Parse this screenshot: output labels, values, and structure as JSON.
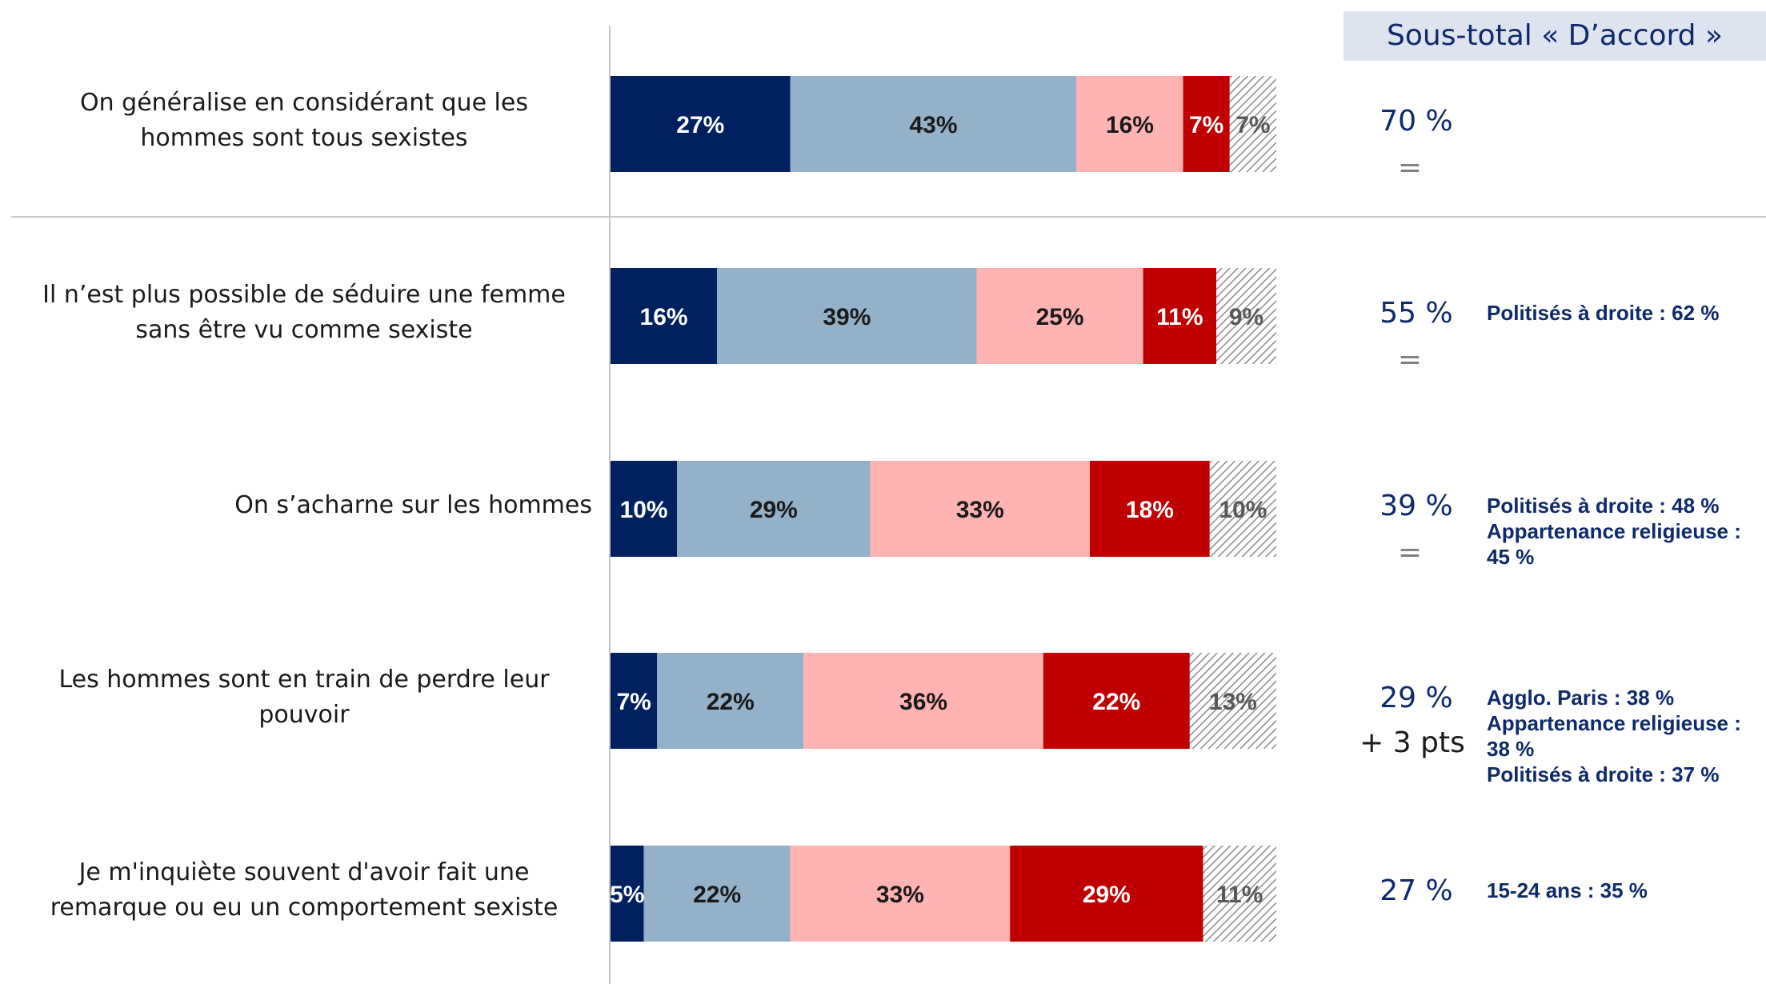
{
  "header": {
    "subtotal_title": "Sous-total « D’accord »"
  },
  "chart_data": {
    "type": "bar",
    "orientation": "horizontal",
    "stacked": true,
    "value_format": "{v}%",
    "categories": [
      "On généralise en considérant que les\nhommes sont tous sexistes",
      "Il n’est plus possible de séduire une femme\nsans être vu comme sexiste",
      "On s’acharne sur les hommes",
      "Les hommes sont en train de perdre leur\npouvoir",
      "Je m'inquiète souvent d'avoir fait une\nremarque ou eu un comportement sexiste"
    ],
    "series": [
      {
        "values": [
          27,
          16,
          10,
          7,
          5
        ],
        "color": "#002060",
        "label_color": "#ffffff"
      },
      {
        "values": [
          43,
          39,
          29,
          22,
          22
        ],
        "color": "#93b1c8",
        "label_color": "#1a1a1a"
      },
      {
        "values": [
          16,
          25,
          33,
          36,
          33
        ],
        "color": "#ffb3b3",
        "label_color": "#1a1a1a"
      },
      {
        "values": [
          7,
          11,
          18,
          22,
          29
        ],
        "color": "#c00000",
        "label_color": "#ffffff"
      },
      {
        "values": [
          7,
          9,
          10,
          13,
          11
        ],
        "color": "hatched",
        "label_color": "#595959"
      }
    ],
    "xlim": [
      0,
      100
    ]
  },
  "subtotals": [
    {
      "value": "70 %",
      "evolution": "=",
      "evolution_type": "eq",
      "notes": []
    },
    {
      "value": "55 %",
      "evolution": "=",
      "evolution_type": "eq",
      "notes": [
        "Politisés à droite : 62 %"
      ]
    },
    {
      "value": "39 %",
      "evolution": "=",
      "evolution_type": "eq",
      "notes": [
        "Politisés à droite : 48 %",
        "Appartenance religieuse : 45 %"
      ]
    },
    {
      "value": "29 %",
      "evolution": "+ 3 pts",
      "evolution_type": "up",
      "notes": [
        "Agglo. Paris : 38 %",
        "Appartenance religieuse : 38 %",
        "Politisés à droite : 37 %"
      ]
    },
    {
      "value": "27 %",
      "evolution": "",
      "evolution_type": "none",
      "notes": [
        "15-24 ans : 35 %"
      ]
    }
  ]
}
